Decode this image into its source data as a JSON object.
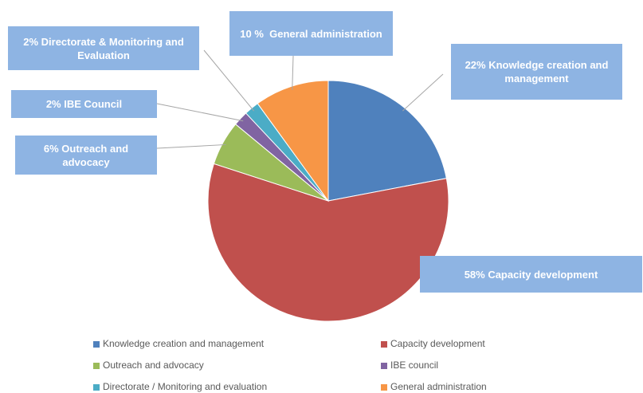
{
  "chart_data": {
    "type": "pie",
    "categories": [
      "Knowledge creation and management",
      "Capacity development",
      "Outreach and advocacy",
      "IBE council",
      "Directorate / Monitoring and evaluation",
      "General administration"
    ],
    "values": [
      22,
      58,
      6,
      2,
      2,
      10
    ],
    "value_labels": [
      "22% Knowledge creation and management",
      "58% Capacity development",
      "6% Outreach and advocacy",
      "2% IBE Council",
      "2% Directorate & Monitoring and Evaluation",
      "10 %  General administration"
    ],
    "colors": [
      "#4f81bd",
      "#c0504d",
      "#9bbb59",
      "#8064a2",
      "#4bacc6",
      "#f79646"
    ],
    "legend": "bottom"
  }
}
